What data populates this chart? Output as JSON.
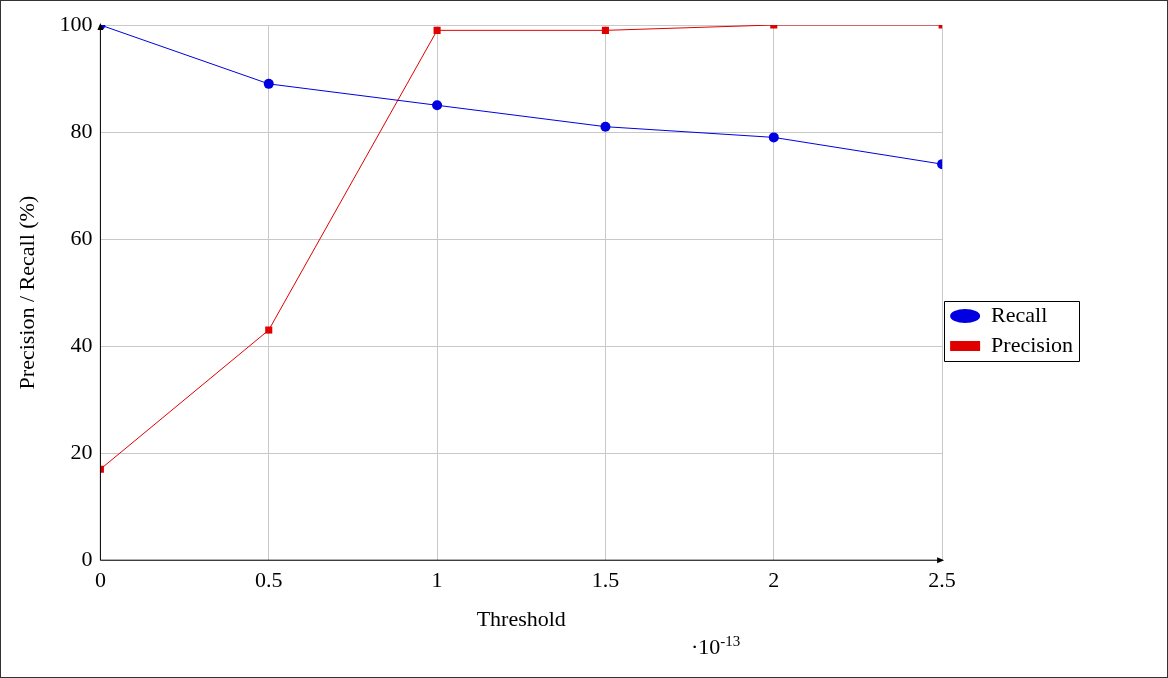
{
  "chart_data": {
    "type": "line",
    "xlabel": "Threshold",
    "ylabel": "Precision / Recall (%)",
    "x": [
      0,
      0.5,
      1,
      1.5,
      2,
      2.5
    ],
    "series": [
      {
        "name": "Recall",
        "color": "#0000e0",
        "marker": "circle",
        "values": [
          100,
          89,
          85,
          81,
          79,
          74
        ]
      },
      {
        "name": "Precision",
        "color": "#e00000",
        "marker": "square",
        "values": [
          17,
          43,
          99,
          99,
          100,
          100
        ]
      }
    ],
    "xlim": [
      0,
      2.5
    ],
    "xticks": [
      0,
      0.5,
      1,
      1.5,
      2,
      2.5
    ],
    "ylim": [
      0,
      100
    ],
    "yticks": [
      0,
      20,
      40,
      60,
      80,
      100
    ],
    "grid": true,
    "legend": "right",
    "line_style": "solid",
    "annotations": [
      "·10$^{-13}$"
    ]
  }
}
